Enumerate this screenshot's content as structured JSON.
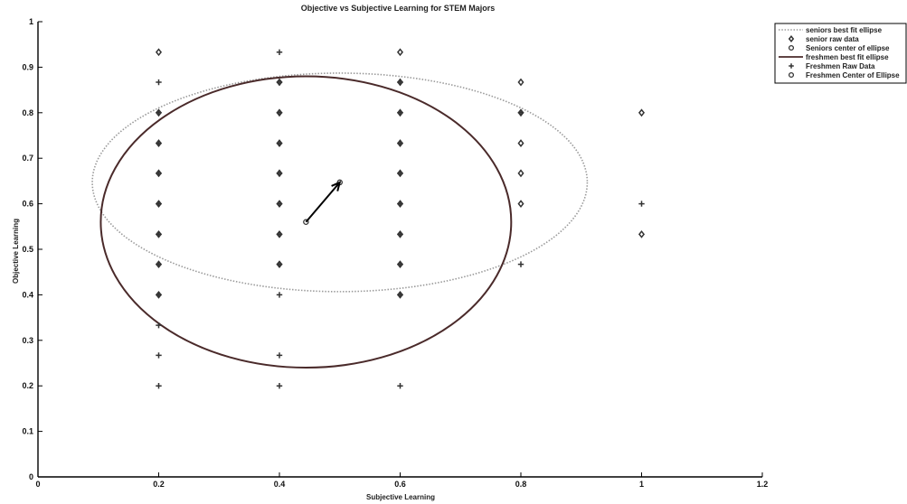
{
  "chart_data": {
    "type": "scatter",
    "title": "Objective vs Subjective Learning for STEM Majors",
    "xlabel": "Subjective Learning",
    "ylabel": "Objective Learning",
    "xlim": [
      0,
      1.2
    ],
    "ylim": [
      0,
      1
    ],
    "xticks": [
      0,
      0.2,
      0.4,
      0.6,
      0.8,
      1,
      1.2
    ],
    "xtick_labels": [
      "0",
      "0.2",
      "0.4",
      "0.6",
      "0.8",
      "1",
      "1.2"
    ],
    "yticks": [
      0,
      0.1,
      0.2,
      0.3,
      0.4,
      0.5,
      0.6,
      0.7,
      0.8,
      0.9,
      1
    ],
    "ytick_labels": [
      "0",
      "0.1",
      "0.2",
      "0.3",
      "0.4",
      "0.5",
      "0.6",
      "0.7",
      "0.8",
      "0.9",
      "1"
    ],
    "grid": false,
    "legend_position": "top-right",
    "series": [
      {
        "name": "seniors best fit ellipse",
        "kind": "ellipse",
        "style": "dotted",
        "color": "#9a9a9a",
        "center": [
          0.5,
          0.647
        ],
        "rx": 0.41,
        "ry": 0.24
      },
      {
        "name": "senior raw data",
        "kind": "points",
        "marker": "diamond",
        "color": "#333333",
        "points": [
          [
            0.2,
            0.933
          ],
          [
            0.2,
            0.8
          ],
          [
            0.2,
            0.733
          ],
          [
            0.2,
            0.667
          ],
          [
            0.2,
            0.6
          ],
          [
            0.2,
            0.533
          ],
          [
            0.2,
            0.467
          ],
          [
            0.2,
            0.4
          ],
          [
            0.4,
            0.867
          ],
          [
            0.4,
            0.8
          ],
          [
            0.4,
            0.733
          ],
          [
            0.4,
            0.667
          ],
          [
            0.4,
            0.6
          ],
          [
            0.4,
            0.533
          ],
          [
            0.4,
            0.467
          ],
          [
            0.6,
            0.933
          ],
          [
            0.6,
            0.867
          ],
          [
            0.6,
            0.8
          ],
          [
            0.6,
            0.733
          ],
          [
            0.6,
            0.667
          ],
          [
            0.6,
            0.6
          ],
          [
            0.6,
            0.533
          ],
          [
            0.6,
            0.467
          ],
          [
            0.6,
            0.4
          ],
          [
            0.8,
            0.867
          ],
          [
            0.8,
            0.8
          ],
          [
            0.8,
            0.733
          ],
          [
            0.8,
            0.667
          ],
          [
            0.8,
            0.6
          ],
          [
            1,
            0.8
          ],
          [
            1,
            0.533
          ]
        ]
      },
      {
        "name": "Seniors center of ellipse",
        "kind": "points",
        "marker": "circle",
        "color": "#333333",
        "points": [
          [
            0.5,
            0.647
          ]
        ]
      },
      {
        "name": "freshmen best fit ellipse",
        "kind": "ellipse",
        "style": "solid",
        "color": "#4a2a2a",
        "center": [
          0.444,
          0.56
        ],
        "rx": 0.34,
        "ry": 0.32
      },
      {
        "name": "Freshmen Raw Data",
        "kind": "points",
        "marker": "plus",
        "color": "#333333",
        "points": [
          [
            0.2,
            0.867
          ],
          [
            0.2,
            0.8
          ],
          [
            0.2,
            0.733
          ],
          [
            0.2,
            0.667
          ],
          [
            0.2,
            0.6
          ],
          [
            0.2,
            0.533
          ],
          [
            0.2,
            0.467
          ],
          [
            0.2,
            0.4
          ],
          [
            0.2,
            0.333
          ],
          [
            0.2,
            0.267
          ],
          [
            0.2,
            0.2
          ],
          [
            0.4,
            0.933
          ],
          [
            0.4,
            0.867
          ],
          [
            0.4,
            0.8
          ],
          [
            0.4,
            0.733
          ],
          [
            0.4,
            0.667
          ],
          [
            0.4,
            0.6
          ],
          [
            0.4,
            0.533
          ],
          [
            0.4,
            0.467
          ],
          [
            0.4,
            0.4
          ],
          [
            0.4,
            0.267
          ],
          [
            0.4,
            0.2
          ],
          [
            0.6,
            0.867
          ],
          [
            0.6,
            0.8
          ],
          [
            0.6,
            0.733
          ],
          [
            0.6,
            0.667
          ],
          [
            0.6,
            0.6
          ],
          [
            0.6,
            0.533
          ],
          [
            0.6,
            0.467
          ],
          [
            0.6,
            0.4
          ],
          [
            0.6,
            0.2
          ],
          [
            0.8,
            0.8
          ],
          [
            0.8,
            0.467
          ],
          [
            1,
            0.6
          ]
        ]
      },
      {
        "name": "Freshmen Center of Ellipse",
        "kind": "points",
        "marker": "circle",
        "color": "#333333",
        "points": [
          [
            0.444,
            0.56
          ]
        ]
      }
    ],
    "annotations": [
      {
        "kind": "arrow",
        "from": [
          0.444,
          0.56
        ],
        "to": [
          0.5,
          0.647
        ],
        "color": "#000000"
      }
    ]
  }
}
